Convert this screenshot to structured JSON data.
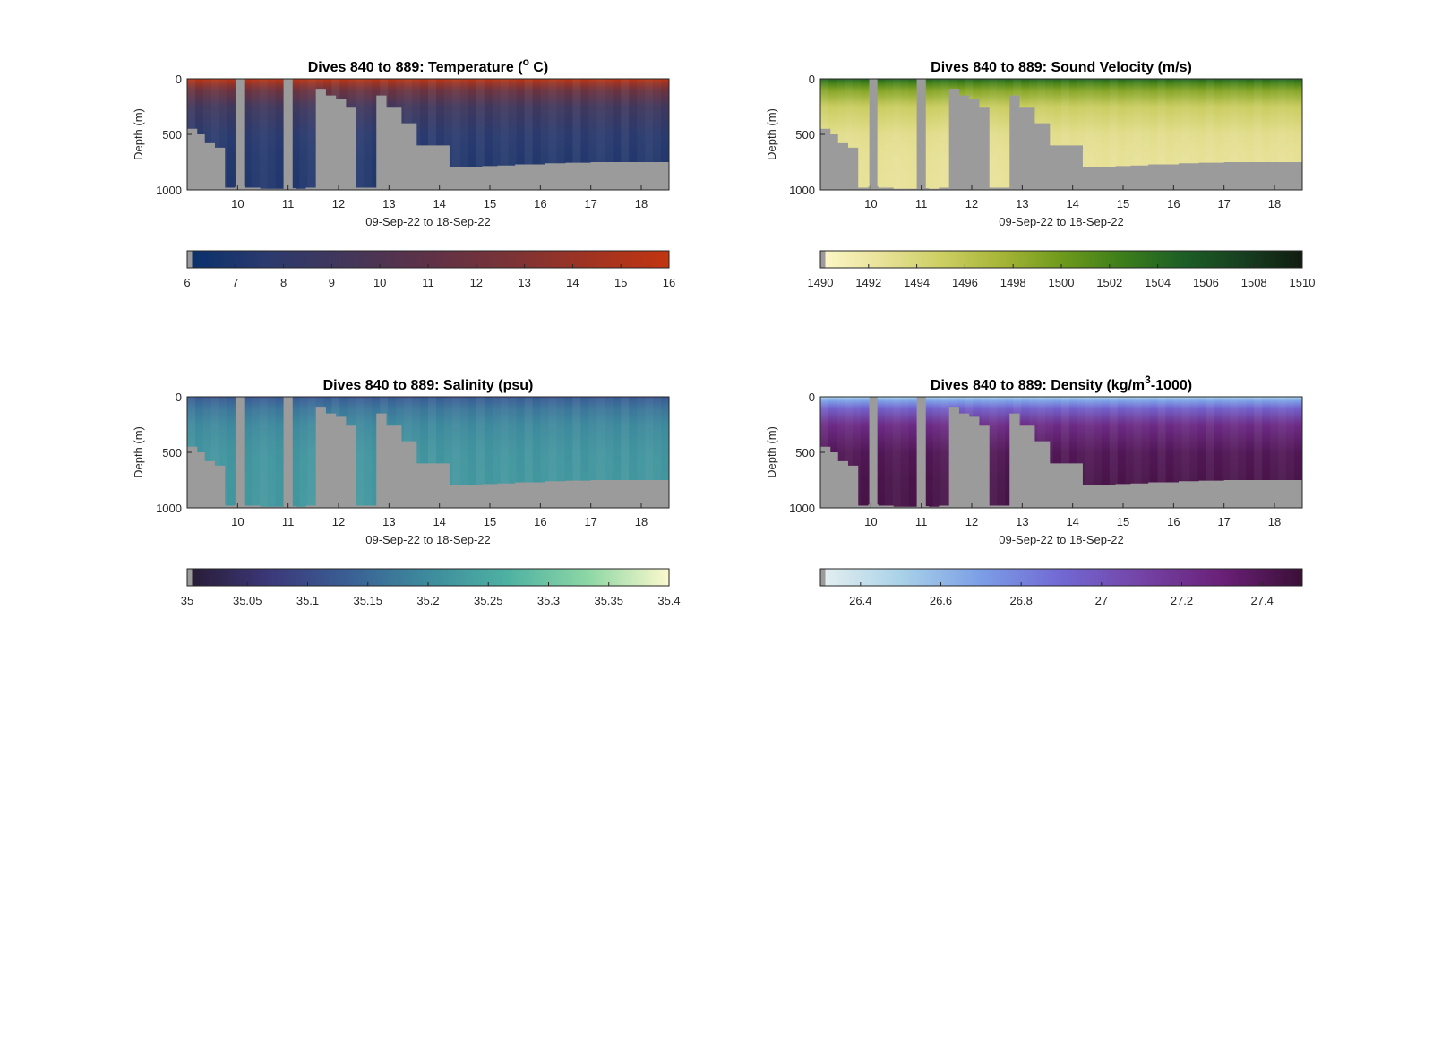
{
  "chart_data": [
    {
      "type": "heatmap",
      "title_main": "Dives 840 to 889: Temperature (",
      "title_sup": "o",
      "title_end": " C)",
      "xlabel": "09-Sep-22 to 18-Sep-22",
      "ylabel": "Depth (m)",
      "x_ticks": [
        "10",
        "11",
        "12",
        "13",
        "14",
        "15",
        "16",
        "17",
        "18"
      ],
      "y_ticks": [
        "0",
        "500",
        "1000"
      ],
      "xlim": [
        9.0,
        18.55
      ],
      "ylim": [
        0,
        1000
      ],
      "colormap": [
        "#08306b",
        "#2b3a6e",
        "#433659",
        "#5e3147",
        "#7a3336",
        "#a03322",
        "#c23510"
      ],
      "colorbar_ticks": [
        "6",
        "7",
        "8",
        "9",
        "10",
        "11",
        "12",
        "13",
        "14",
        "15",
        "16"
      ],
      "clim": [
        6,
        16
      ],
      "surface_value": 15.8,
      "deep_value": 7.2
    },
    {
      "type": "heatmap",
      "title_main": "Dives 840 to 889: Sound Velocity (m/s)",
      "title_sup": "",
      "title_end": "",
      "xlabel": "09-Sep-22 to 18-Sep-22",
      "ylabel": "Depth (m)",
      "x_ticks": [
        "10",
        "11",
        "12",
        "13",
        "14",
        "15",
        "16",
        "17",
        "18"
      ],
      "y_ticks": [
        "0",
        "500",
        "1000"
      ],
      "xlim": [
        9.0,
        18.55
      ],
      "ylim": [
        0,
        1000
      ],
      "colormap": [
        "#fdf8c8",
        "#e8e29a",
        "#cdcf63",
        "#a6b537",
        "#6f9a1c",
        "#3d7e1a",
        "#1d5f26",
        "#173f20",
        "#101c10"
      ],
      "colorbar_ticks": [
        "1490",
        "1492",
        "1494",
        "1496",
        "1498",
        "1500",
        "1502",
        "1504",
        "1506",
        "1508",
        "1510"
      ],
      "clim": [
        1490,
        1510
      ],
      "surface_value": 1504.5,
      "deep_value": 1492.5
    },
    {
      "type": "heatmap",
      "title_main": "Dives 840 to 889: Salinity (psu)",
      "title_sup": "",
      "title_end": "",
      "xlabel": "09-Sep-22 to 18-Sep-22",
      "ylabel": "Depth (m)",
      "x_ticks": [
        "10",
        "11",
        "12",
        "13",
        "14",
        "15",
        "16",
        "17",
        "18"
      ],
      "y_ticks": [
        "0",
        "500",
        "1000"
      ],
      "xlim": [
        9.0,
        18.55
      ],
      "ylim": [
        0,
        1000
      ],
      "colormap": [
        "#281b33",
        "#3b3778",
        "#3a5f95",
        "#3d8b9d",
        "#4eb2a2",
        "#8ed7a5",
        "#fcf9cd"
      ],
      "colorbar_ticks": [
        "35",
        "35.05",
        "35.1",
        "35.15",
        "35.2",
        "35.25",
        "35.3",
        "35.35",
        "35.4"
      ],
      "clim": [
        35,
        35.4
      ],
      "surface_value": 35.12,
      "deep_value": 35.22
    },
    {
      "type": "heatmap",
      "title_main": "Dives 840 to 889: Density (kg/m",
      "title_sup": "3",
      "title_end": "-1000)",
      "xlabel": "09-Sep-22 to 18-Sep-22",
      "ylabel": "Depth (m)",
      "x_ticks": [
        "10",
        "11",
        "12",
        "13",
        "14",
        "15",
        "16",
        "17",
        "18"
      ],
      "y_ticks": [
        "0",
        "500",
        "1000"
      ],
      "xlim": [
        9.0,
        18.55
      ],
      "ylim": [
        0,
        1000
      ],
      "colormap": [
        "#e6f0f0",
        "#a9d2e8",
        "#7b9ee6",
        "#7268d3",
        "#7443a6",
        "#6a2078",
        "#3a0f36"
      ],
      "colorbar_ticks": [
        "26.4",
        "26.6",
        "26.8",
        "27",
        "27.2",
        "27.4"
      ],
      "clim": [
        26.3,
        27.5
      ],
      "surface_value": 26.5,
      "deep_value": 27.45
    }
  ],
  "bottom_profile": {
    "x": [
      9.0,
      9.2,
      9.35,
      9.55,
      9.75,
      9.95,
      10.15,
      10.45,
      10.75,
      10.95,
      11.15,
      11.35,
      11.55,
      11.75,
      11.95,
      12.15,
      12.35,
      12.55,
      12.75,
      12.95,
      13.25,
      13.55,
      13.85,
      14.2,
      14.55,
      14.85,
      15.15,
      15.5,
      15.8,
      16.1,
      16.5,
      17.0,
      17.5,
      18.0,
      18.55
    ],
    "depth": [
      450,
      500,
      580,
      620,
      980,
      970,
      980,
      990,
      990,
      985,
      990,
      980,
      90,
      150,
      180,
      260,
      980,
      980,
      150,
      260,
      400,
      600,
      600,
      790,
      790,
      785,
      780,
      770,
      770,
      760,
      755,
      750,
      750,
      750,
      750
    ],
    "gaps": [
      [
        9.97,
        10.13
      ],
      [
        10.91,
        11.09
      ]
    ],
    "gray_color": "#9b9b9b"
  }
}
